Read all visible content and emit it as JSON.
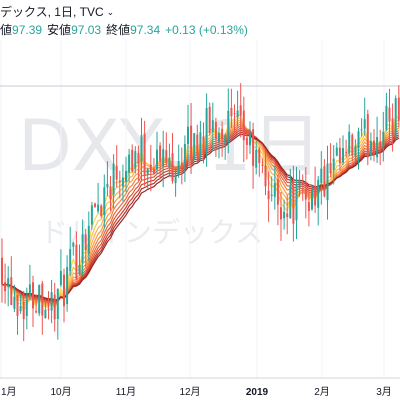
{
  "header": {
    "title": "デックス, 1日, TVC",
    "open_label": "値",
    "open_value": "97.39",
    "low_label": "安値",
    "low_value": "97.03",
    "close_label": "終値",
    "close_value": "97.34",
    "change": "+0.13 (+0.13%)"
  },
  "watermark": {
    "symbol": "DXY, 1日",
    "name": "ドルインデックス"
  },
  "colors": {
    "up": "#26a69a",
    "down": "#ef5350",
    "ribbon": [
      "#ffd54f",
      "#ffc34d",
      "#ffb14a",
      "#fb9b46",
      "#f4813f",
      "#ea6a3a",
      "#dd5535",
      "#cc4331",
      "#b5332d",
      "#9a2727"
    ]
  },
  "chart_data": {
    "type": "candlestick",
    "symbol": "DXY",
    "interval": "1日",
    "source": "TVC",
    "x_ticks": [
      "1月",
      "10月",
      "11月",
      "12月",
      "2019",
      "2月",
      "3月"
    ],
    "last": {
      "high": 97.39,
      "low": 97.03,
      "close": 97.34,
      "change": 0.13,
      "change_pct": 0.13
    },
    "ema_ribbon_count": 10,
    "close_path": [
      [
        0,
        94.4
      ],
      [
        10,
        93.8
      ],
      [
        20,
        93.5
      ],
      [
        30,
        93.6
      ],
      [
        40,
        93.7
      ],
      [
        50,
        93.4
      ],
      [
        60,
        93.6
      ],
      [
        75,
        94.3
      ],
      [
        90,
        95.1
      ],
      [
        110,
        95.9
      ],
      [
        130,
        96.4
      ],
      [
        150,
        96.3
      ],
      [
        170,
        96.2
      ],
      [
        190,
        96.5
      ],
      [
        210,
        96.9
      ],
      [
        225,
        97.0
      ],
      [
        245,
        96.7
      ],
      [
        260,
        96.0
      ],
      [
        275,
        95.5
      ],
      [
        290,
        95.4
      ],
      [
        310,
        95.6
      ],
      [
        330,
        95.9
      ],
      [
        350,
        96.4
      ],
      [
        370,
        96.7
      ],
      [
        385,
        96.9
      ],
      [
        400,
        97.3
      ]
    ],
    "ylim": [
      92.0,
      98.6
    ]
  }
}
